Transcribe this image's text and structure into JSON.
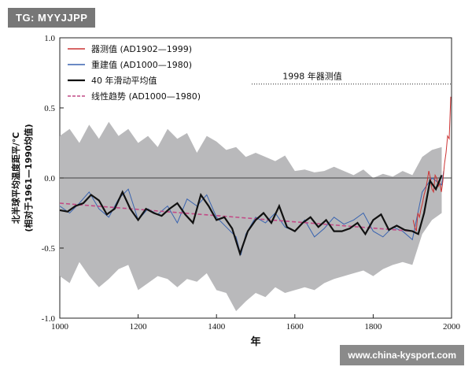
{
  "watermarks": {
    "top": "TG: MYYJJPP",
    "bottom": "www.china-kysport.com"
  },
  "chart_data": {
    "type": "line",
    "xlabel": "年",
    "ylabel_line1": "北半球平均温度距平/℃",
    "ylabel_line2": "(相对于1961—1990均值)",
    "xlim": [
      1000,
      2000
    ],
    "ylim": [
      -1.0,
      1.0
    ],
    "x_ticks": [
      1000,
      1200,
      1400,
      1600,
      1800,
      2000
    ],
    "y_ticks": [
      1.0,
      0.5,
      0.0,
      -0.5,
      -1.0
    ],
    "y_tick_labels": [
      "1.0",
      "0.5",
      "0.0",
      "-0.5",
      "-1.0"
    ],
    "x_tick_labels": [
      "1000",
      "1200",
      "1400",
      "1600",
      "1800",
      "2000"
    ],
    "zero_line": 0.0,
    "annotation": {
      "text": "1998 年器测值",
      "x_start": 1490,
      "x_end": 2000,
      "y": 0.67
    },
    "legend_placement": "top-left",
    "series": [
      {
        "name": "器测值 (AD1902—1999)",
        "role": "instrumental",
        "color": "#cc3333",
        "x": [
          1902,
          1906,
          1910,
          1914,
          1918,
          1922,
          1926,
          1930,
          1934,
          1938,
          1942,
          1946,
          1950,
          1954,
          1958,
          1962,
          1966,
          1970,
          1974,
          1978,
          1982,
          1986,
          1990,
          1994,
          1998
        ],
        "y": [
          -0.3,
          -0.35,
          -0.38,
          -0.25,
          -0.28,
          -0.22,
          -0.18,
          -0.12,
          -0.08,
          -0.02,
          0.05,
          0.0,
          -0.08,
          -0.1,
          0.02,
          0.0,
          -0.06,
          -0.04,
          -0.1,
          -0.02,
          0.1,
          0.18,
          0.3,
          0.28,
          0.58
        ]
      },
      {
        "name": "重建值 (AD1000—1980)",
        "role": "reconstruction",
        "color": "#3a64b0",
        "x": [
          1000,
          1025,
          1050,
          1075,
          1100,
          1125,
          1150,
          1175,
          1200,
          1225,
          1250,
          1275,
          1300,
          1325,
          1350,
          1375,
          1400,
          1425,
          1450,
          1462,
          1475,
          1500,
          1525,
          1550,
          1575,
          1600,
          1625,
          1650,
          1675,
          1700,
          1725,
          1750,
          1775,
          1800,
          1825,
          1850,
          1875,
          1900,
          1925,
          1950,
          1975,
          1980
        ],
        "y": [
          -0.2,
          -0.25,
          -0.18,
          -0.1,
          -0.22,
          -0.28,
          -0.15,
          -0.08,
          -0.3,
          -0.22,
          -0.26,
          -0.2,
          -0.32,
          -0.15,
          -0.2,
          -0.12,
          -0.28,
          -0.35,
          -0.42,
          -0.55,
          -0.4,
          -0.28,
          -0.32,
          -0.25,
          -0.35,
          -0.38,
          -0.3,
          -0.42,
          -0.36,
          -0.28,
          -0.33,
          -0.3,
          -0.25,
          -0.38,
          -0.42,
          -0.35,
          -0.38,
          -0.44,
          -0.1,
          0.0,
          -0.05,
          0.05
        ]
      },
      {
        "name": "40 年滑动平均值",
        "role": "smoothed",
        "color": "#111111",
        "x": [
          1000,
          1020,
          1040,
          1060,
          1080,
          1100,
          1120,
          1140,
          1160,
          1180,
          1200,
          1220,
          1240,
          1260,
          1280,
          1300,
          1320,
          1340,
          1360,
          1380,
          1400,
          1420,
          1440,
          1460,
          1480,
          1500,
          1520,
          1540,
          1560,
          1580,
          1600,
          1620,
          1640,
          1660,
          1680,
          1700,
          1720,
          1740,
          1760,
          1780,
          1800,
          1820,
          1840,
          1860,
          1880,
          1900,
          1915,
          1930,
          1945,
          1960,
          1975
        ],
        "y": [
          -0.23,
          -0.24,
          -0.2,
          -0.18,
          -0.12,
          -0.16,
          -0.26,
          -0.22,
          -0.1,
          -0.22,
          -0.3,
          -0.22,
          -0.25,
          -0.27,
          -0.22,
          -0.18,
          -0.26,
          -0.32,
          -0.12,
          -0.2,
          -0.3,
          -0.28,
          -0.36,
          -0.54,
          -0.38,
          -0.3,
          -0.25,
          -0.32,
          -0.2,
          -0.35,
          -0.38,
          -0.32,
          -0.28,
          -0.35,
          -0.3,
          -0.38,
          -0.38,
          -0.36,
          -0.32,
          -0.4,
          -0.3,
          -0.26,
          -0.37,
          -0.34,
          -0.37,
          -0.38,
          -0.4,
          -0.25,
          -0.02,
          -0.08,
          0.02
        ]
      },
      {
        "name": "线性趋势 (AD1000—1980)",
        "role": "trend",
        "color": "#c24a86",
        "x": [
          1000,
          1900
        ],
        "y": [
          -0.18,
          -0.38
        ]
      }
    ],
    "uncertainty_band": {
      "color": "#b9b9bb",
      "x": [
        1000,
        1025,
        1050,
        1075,
        1100,
        1125,
        1150,
        1175,
        1200,
        1225,
        1250,
        1275,
        1300,
        1325,
        1350,
        1375,
        1400,
        1425,
        1450,
        1475,
        1500,
        1525,
        1550,
        1575,
        1600,
        1625,
        1650,
        1675,
        1700,
        1725,
        1750,
        1775,
        1800,
        1825,
        1850,
        1875,
        1900,
        1925,
        1950,
        1975
      ],
      "upper": [
        0.3,
        0.35,
        0.25,
        0.38,
        0.28,
        0.4,
        0.3,
        0.35,
        0.25,
        0.3,
        0.22,
        0.35,
        0.28,
        0.32,
        0.18,
        0.3,
        0.26,
        0.2,
        0.22,
        0.15,
        0.18,
        0.15,
        0.12,
        0.16,
        0.05,
        0.06,
        0.04,
        0.05,
        0.08,
        0.05,
        0.02,
        0.06,
        0.0,
        0.03,
        0.01,
        0.05,
        0.02,
        0.15,
        0.2,
        0.22
      ],
      "lower": [
        -0.7,
        -0.75,
        -0.6,
        -0.7,
        -0.78,
        -0.72,
        -0.65,
        -0.62,
        -0.8,
        -0.75,
        -0.7,
        -0.72,
        -0.78,
        -0.72,
        -0.74,
        -0.68,
        -0.8,
        -0.82,
        -0.95,
        -0.88,
        -0.82,
        -0.85,
        -0.78,
        -0.82,
        -0.8,
        -0.78,
        -0.8,
        -0.75,
        -0.72,
        -0.7,
        -0.68,
        -0.66,
        -0.7,
        -0.65,
        -0.62,
        -0.6,
        -0.62,
        -0.4,
        -0.3,
        -0.25
      ]
    }
  }
}
